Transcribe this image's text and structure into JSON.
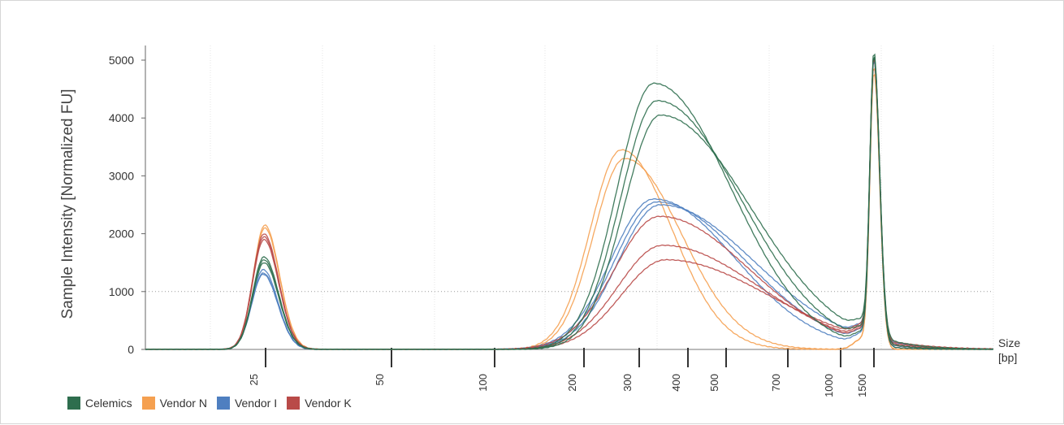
{
  "chart_data": {
    "type": "line",
    "title": "",
    "ylabel": "Sample Intensity [Normalized FU]",
    "xlabel": "Size\n[bp]",
    "xlabel_lines": [
      "Size",
      "[bp]"
    ],
    "ylim": [
      0,
      5000
    ],
    "y_ticks": [
      0,
      1000,
      2000,
      3000,
      4000,
      5000
    ],
    "x_ticks": [
      "25",
      "50",
      "100",
      "200",
      "300",
      "400",
      "500",
      "700",
      "1000",
      "1500"
    ],
    "grid": true,
    "legend_position": "bottom-left",
    "series": [
      {
        "name": "Celemics",
        "color": "#2e6e4e",
        "peaks_bp": [
          25,
          400,
          1500
        ],
        "peak_values": [
          1600,
          4600,
          5000
        ],
        "replicate_peak_values": [
          [
            1600,
            4600,
            5000
          ],
          [
            1550,
            4300,
            4950
          ],
          [
            1500,
            4050,
            4900
          ]
        ]
      },
      {
        "name": "Vendor N",
        "color": "#f5a050",
        "peaks_bp": [
          25,
          300,
          1500
        ],
        "peak_values": [
          2150,
          3450,
          4900
        ],
        "replicate_peak_values": [
          [
            2150,
            3450,
            4900
          ],
          [
            2100,
            3300,
            4800
          ]
        ]
      },
      {
        "name": "Vendor I",
        "color": "#4f7fc0",
        "peaks_bp": [
          25,
          400,
          1500
        ],
        "peak_values": [
          1380,
          2600,
          4950
        ],
        "replicate_peak_values": [
          [
            1380,
            2600,
            4950
          ],
          [
            1320,
            2550,
            4900
          ],
          [
            1300,
            2500,
            4850
          ]
        ]
      },
      {
        "name": "Vendor K",
        "color": "#b94a48",
        "peaks_bp": [
          25,
          400,
          1500
        ],
        "peak_values": [
          2000,
          2300,
          4950
        ],
        "replicate_peak_values": [
          [
            2000,
            2300,
            4950
          ],
          [
            1950,
            1800,
            4900
          ],
          [
            1900,
            1550,
            4850
          ]
        ]
      }
    ]
  }
}
